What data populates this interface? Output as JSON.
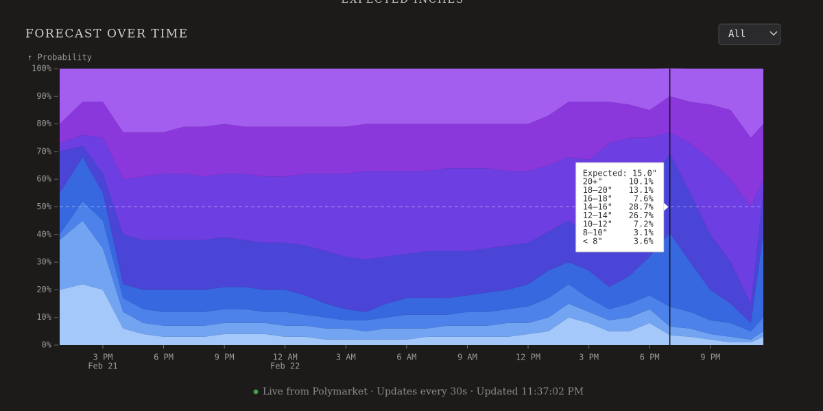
{
  "header": {
    "section": "EXPECTED INCHES",
    "title": "FORECAST OVER TIME",
    "dropdown": "All"
  },
  "footer": {
    "status": "Live from Polymarket · Updates every 30s · Updated 11:37:02 PM"
  },
  "chart_data": {
    "type": "stacked_area",
    "y_label": "↑ Probability",
    "x": [
      "Feb 21 12:52",
      "Feb 21 14:00",
      "Feb 21 15:00",
      "Feb 21 16:00",
      "Feb 21 17:00",
      "Feb 21 18:00",
      "Feb 21 19:00",
      "Feb 21 20:00",
      "Feb 21 21:00",
      "Feb 21 22:00",
      "Feb 21 23:00",
      "Feb 22 00:00",
      "Feb 22 01:00",
      "Feb 22 02:00",
      "Feb 22 03:00",
      "Feb 22 04:00",
      "Feb 22 05:00",
      "Feb 22 06:00",
      "Feb 22 07:00",
      "Feb 22 08:00",
      "Feb 22 09:00",
      "Feb 22 10:00",
      "Feb 22 11:00",
      "Feb 22 12:00",
      "Feb 22 13:00",
      "Feb 22 14:00",
      "Feb 22 15:00",
      "Feb 22 16:00",
      "Feb 22 17:00",
      "Feb 22 18:00",
      "Feb 22 19:00",
      "Feb 22 20:00",
      "Feb 22 21:00",
      "Feb 22 22:00",
      "Feb 22 23:00",
      "Feb 22 23:37"
    ],
    "xlim": [
      "Feb 21 12:52",
      "Feb 22 23:37"
    ],
    "xticks": [
      {
        "value": "Feb 21 15:00",
        "label": "3 PM",
        "sublabel": "Feb 21"
      },
      {
        "value": "Feb 21 18:00",
        "label": "6 PM"
      },
      {
        "value": "Feb 21 21:00",
        "label": "9 PM"
      },
      {
        "value": "Feb 22 00:00",
        "label": "12 AM",
        "sublabel": "Feb 22"
      },
      {
        "value": "Feb 22 03:00",
        "label": "3 AM"
      },
      {
        "value": "Feb 22 06:00",
        "label": "6 AM"
      },
      {
        "value": "Feb 22 09:00",
        "label": "9 AM"
      },
      {
        "value": "Feb 22 12:00",
        "label": "12 PM"
      },
      {
        "value": "Feb 22 15:00",
        "label": "3 PM"
      },
      {
        "value": "Feb 22 18:00",
        "label": "6 PM"
      },
      {
        "value": "Feb 22 21:00",
        "label": "9 PM"
      }
    ],
    "ylim": [
      0,
      100
    ],
    "yticks": [
      {
        "value": 0,
        "label": "0%"
      },
      {
        "value": 10,
        "label": "10%"
      },
      {
        "value": 20,
        "label": "20%"
      },
      {
        "value": 30,
        "label": "30%"
      },
      {
        "value": 40,
        "label": "40%"
      },
      {
        "value": 50,
        "label": "50%"
      },
      {
        "value": 60,
        "label": "60%"
      },
      {
        "value": 70,
        "label": "70%"
      },
      {
        "value": 80,
        "label": "80%"
      },
      {
        "value": 90,
        "label": "90%"
      },
      {
        "value": 100,
        "label": "100%"
      }
    ],
    "ygrid": [
      50
    ],
    "series": [
      {
        "name": "20+\"",
        "color": "#a35ef0",
        "values": [
          20,
          12,
          12,
          23,
          23,
          23,
          21,
          21,
          20,
          21,
          21,
          21,
          21,
          21,
          21,
          20,
          20,
          20,
          20,
          20,
          20,
          20,
          20,
          20,
          17,
          12,
          12,
          12,
          13,
          15,
          10.1,
          12,
          13,
          15,
          25,
          20
        ]
      },
      {
        "name": "18–20\"",
        "color": "#8a37dc",
        "values": [
          7,
          12,
          13,
          17,
          16,
          15,
          17,
          18,
          18,
          17,
          18,
          18,
          17,
          17,
          17,
          17,
          17,
          17,
          17,
          16,
          16,
          16,
          17,
          17,
          18,
          20,
          21,
          15,
          12,
          10,
          13.1,
          15,
          20,
          25,
          25,
          20
        ]
      },
      {
        "name": "16–18\"",
        "color": "#6d3fe2",
        "values": [
          3,
          4,
          13,
          20,
          23,
          24,
          24,
          23,
          23,
          24,
          24,
          24,
          26,
          28,
          30,
          32,
          31,
          30,
          29,
          30,
          30,
          29,
          27,
          26,
          24,
          23,
          27,
          35,
          25,
          17,
          7.6,
          18,
          27,
          30,
          35,
          5
        ]
      },
      {
        "name": "14–16\"",
        "color": "#4a45d6",
        "values": [
          15,
          4,
          7,
          18,
          18,
          18,
          18,
          18,
          18,
          17,
          17,
          17,
          18,
          19,
          19,
          19,
          17,
          16,
          17,
          17,
          16,
          16,
          16,
          15,
          14,
          15,
          13,
          17,
          25,
          26,
          28.7,
          25,
          20,
          15,
          7,
          15
        ]
      },
      {
        "name": "12–14\"",
        "color": "#3868e0",
        "values": [
          15,
          16,
          10,
          5,
          7,
          8,
          8,
          8,
          8,
          8,
          8,
          8,
          7,
          5,
          4,
          3,
          5,
          6,
          6,
          6,
          6,
          7,
          7,
          8,
          10,
          8,
          10,
          8,
          10,
          14,
          26.7,
          18,
          11,
          7,
          3,
          30
        ]
      },
      {
        "name": "10–12\"",
        "color": "#4c82ea",
        "values": [
          2,
          7,
          10,
          5,
          5,
          5,
          5,
          5,
          5,
          5,
          4,
          5,
          4,
          4,
          3,
          4,
          4,
          5,
          5,
          4,
          5,
          5,
          5,
          6,
          7,
          7,
          5,
          4,
          5,
          5,
          7.2,
          6,
          5,
          5,
          3,
          5
        ]
      },
      {
        "name": "8–10\"",
        "color": "#73a4f2",
        "values": [
          18,
          23,
          15,
          6,
          4,
          4,
          4,
          4,
          4,
          4,
          4,
          4,
          4,
          4,
          4,
          3,
          4,
          4,
          3,
          4,
          4,
          4,
          5,
          4,
          5,
          5,
          4,
          4,
          5,
          5,
          3.1,
          3,
          2,
          2,
          1,
          2
        ]
      },
      {
        "name": "< 8\"",
        "color": "#a4c8f9",
        "values": [
          20,
          22,
          20,
          6,
          4,
          3,
          3,
          3,
          4,
          4,
          4,
          3,
          3,
          2,
          2,
          2,
          2,
          2,
          3,
          3,
          3,
          3,
          3,
          4,
          5,
          10,
          8,
          5,
          5,
          8,
          3.6,
          3,
          2,
          1,
          1,
          3
        ]
      }
    ],
    "tooltip": {
      "x": "Feb 22 19:00",
      "title": "Expected: 15.0\"",
      "value_labels": [
        "10.1%",
        "13.1%",
        "7.6%",
        "28.7%",
        "26.7%",
        "7.2%",
        "3.1%",
        "3.6%"
      ]
    }
  }
}
